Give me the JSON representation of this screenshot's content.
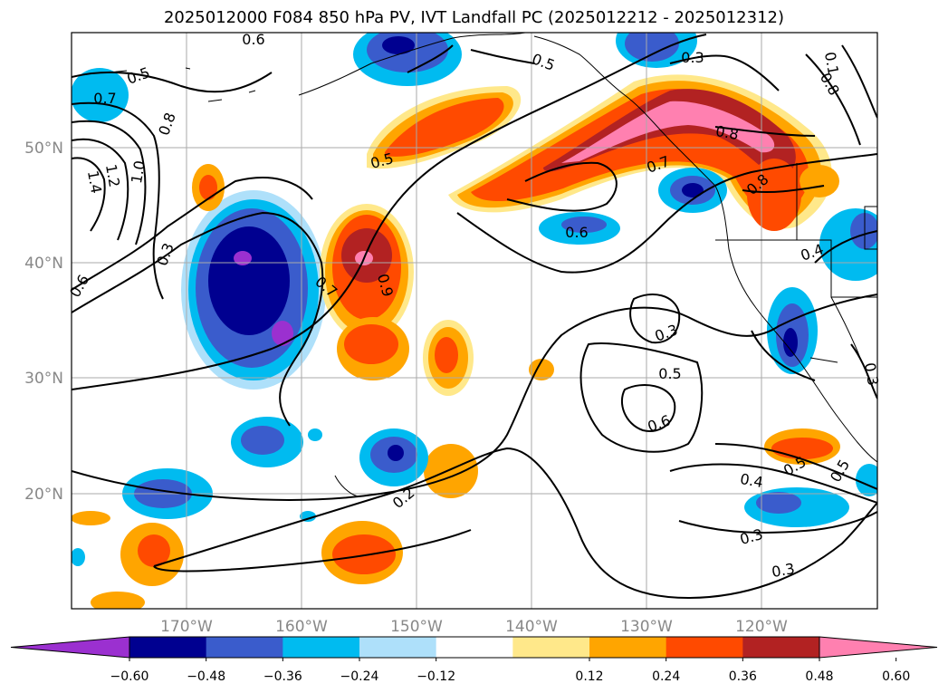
{
  "title": "2025012000 F084 850 hPa PV, IVT Landfall PC (2025012212 - 2025012312)",
  "map": {
    "lon_labels": [
      "170°W",
      "160°W",
      "150°W",
      "140°W",
      "130°W",
      "120°W"
    ],
    "lat_labels": [
      "50°N",
      "40°N",
      "30°N",
      "20°N"
    ],
    "contour_labels": [
      "0.6",
      "0.5",
      "0.7",
      "0.8",
      "1.4",
      "1.2",
      "1.0",
      "0.3",
      "0.6",
      "0.5",
      "0.5",
      "0.3",
      "0.6",
      "0.7",
      "0.8",
      "0.1",
      "0.8",
      "0.8",
      "0.4",
      "0.7",
      "0.9",
      "0.3",
      "0.5",
      "0.6",
      "0.3",
      "0.2",
      "0.4",
      "0.5",
      "0.5",
      "0.3",
      "0.3"
    ]
  },
  "colorbar": {
    "ticks": [
      "−0.60",
      "−0.48",
      "−0.36",
      "−0.24",
      "−0.12",
      "0.12",
      "0.24",
      "0.36",
      "0.48",
      "0.60"
    ],
    "colors": [
      "#9b30d0",
      "#000090",
      "#3a5ccc",
      "#00bbf0",
      "#aee0fa",
      "#ffffff",
      "#ffe88a",
      "#ffa500",
      "#ff4a00",
      "#b22222",
      "#ff80b0"
    ]
  }
}
